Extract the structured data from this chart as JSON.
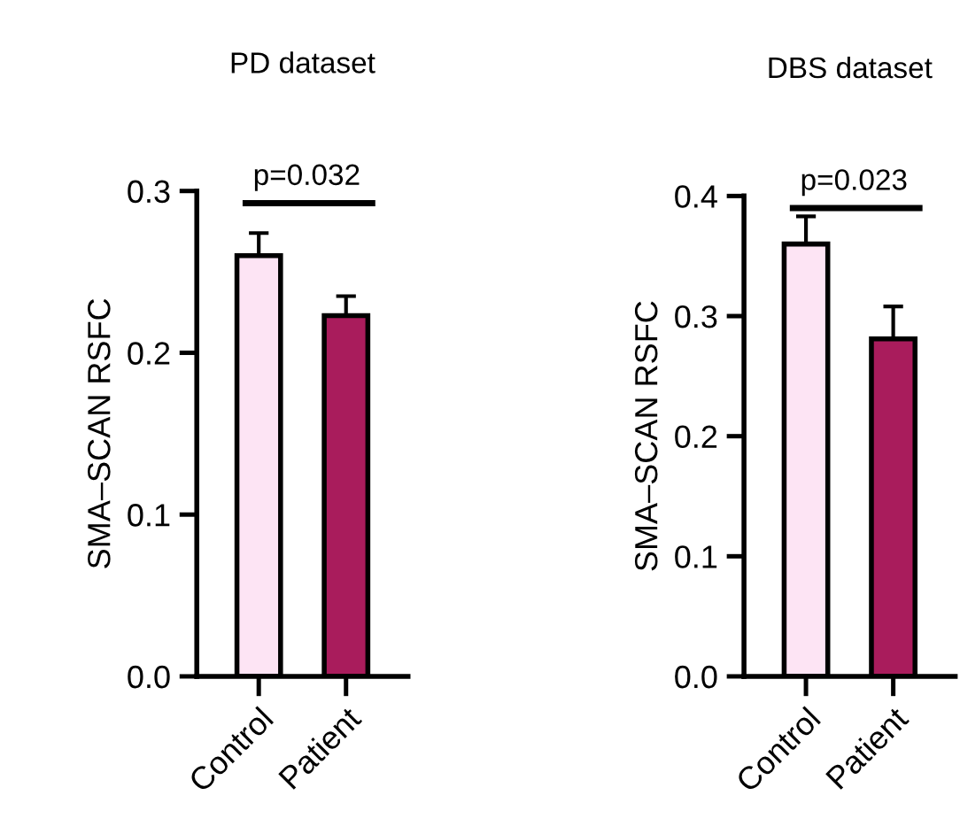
{
  "chart_data": [
    {
      "type": "bar",
      "title": "PD dataset",
      "ylabel": "SMA–SCAN RSFC",
      "categories": [
        "Control",
        "Patient"
      ],
      "values": [
        0.26,
        0.223
      ],
      "errors": [
        [
          0.26,
          0.274
        ],
        [
          0.223,
          0.235
        ]
      ],
      "colors": [
        "#fde4f4",
        "#a91c5c"
      ],
      "ylim": [
        0,
        0.3
      ],
      "yticks": [
        {
          "value": 0,
          "label": "0.0"
        },
        0.1,
        0.2,
        0.3
      ],
      "grid": false,
      "annotations": [
        "p=0.032"
      ]
    },
    {
      "type": "bar",
      "title": "DBS dataset",
      "ylabel": "SMA–SCAN RSFC",
      "categories": [
        "Control",
        "Patient"
      ],
      "values": [
        0.36,
        0.281
      ],
      "errors": [
        [
          0.36,
          0.383
        ],
        [
          0.281,
          0.308
        ]
      ],
      "colors": [
        "#fde4f4",
        "#a91c5c"
      ],
      "ylim": [
        0,
        0.4
      ],
      "yticks": [
        {
          "value": 0,
          "label": "0.0"
        },
        0.1,
        0.2,
        0.3,
        0.4
      ],
      "grid": false,
      "annotations": [
        "p=0.023"
      ]
    }
  ]
}
